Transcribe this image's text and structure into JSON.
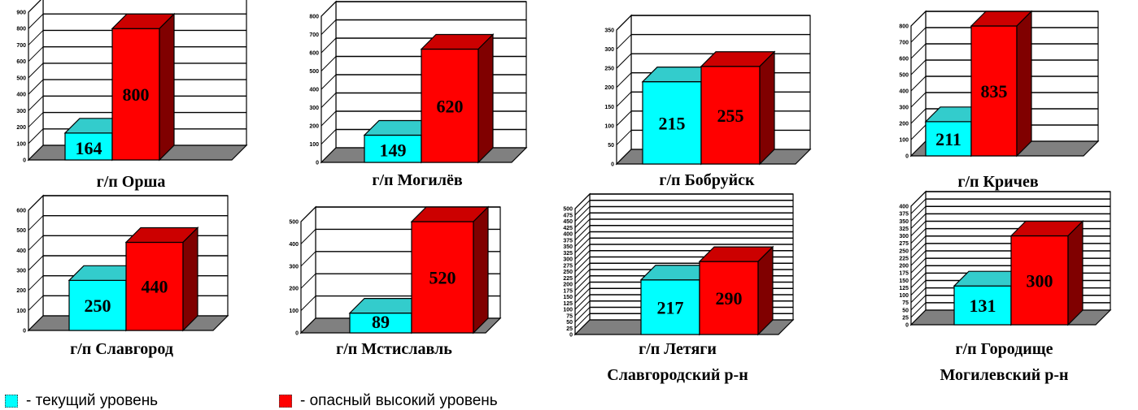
{
  "colors": {
    "current": "#00ffff",
    "current_side": "#00c8c8",
    "current_top": "#33cccc",
    "danger": "#ff0000",
    "danger_side": "#800000",
    "danger_top": "#cc0000",
    "floor": "#808080"
  },
  "legend": {
    "current_label": "- текущий уровень",
    "danger_label": "- опасный высокий уровень"
  },
  "chart_data": [
    {
      "type": "bar",
      "title": "г/п Орша",
      "title_lines": [
        "г/п Орша"
      ],
      "categories": [
        "текущий уровень",
        "опасный высокий уровень"
      ],
      "values": [
        164,
        800
      ],
      "ylim": [
        0,
        900
      ],
      "yticks": [
        0,
        100,
        200,
        300,
        400,
        500,
        600,
        700,
        800,
        900
      ]
    },
    {
      "type": "bar",
      "title": "г/п Могилёв",
      "title_lines": [
        "г/п Могилёв"
      ],
      "categories": [
        "текущий уровень",
        "опасный высокий уровень"
      ],
      "values": [
        149,
        620
      ],
      "ylim": [
        0,
        800
      ],
      "yticks": [
        0,
        100,
        200,
        300,
        400,
        500,
        600,
        700,
        800
      ]
    },
    {
      "type": "bar",
      "title": "г/п Бобруйск",
      "title_lines": [
        "г/п Бобруйск"
      ],
      "categories": [
        "текущий уровень",
        "опасный высокий уровень"
      ],
      "values": [
        215,
        255
      ],
      "ylim": [
        0,
        350
      ],
      "yticks": [
        0,
        50,
        100,
        150,
        200,
        250,
        300,
        350
      ]
    },
    {
      "type": "bar",
      "title": "г/п Кричев",
      "title_lines": [
        "г/п Кричев"
      ],
      "categories": [
        "текущий уровень",
        "опасный высокий уровень"
      ],
      "values": [
        211,
        835
      ],
      "ylim": [
        0,
        800
      ],
      "yticks": [
        0,
        100,
        200,
        300,
        400,
        500,
        600,
        700,
        800
      ]
    },
    {
      "type": "bar",
      "title": "г/п Славгород",
      "title_lines": [
        "г/п Славгород"
      ],
      "categories": [
        "текущий уровень",
        "опасный высокий уровень"
      ],
      "values": [
        250,
        440
      ],
      "ylim": [
        0,
        600
      ],
      "yticks": [
        0,
        100,
        200,
        300,
        400,
        500,
        600
      ]
    },
    {
      "type": "bar",
      "title": "г/п Мстиславль",
      "title_lines": [
        "г/п Мстиславль"
      ],
      "categories": [
        "текущий уровень",
        "опасный высокий уровень"
      ],
      "values": [
        89,
        520
      ],
      "ylim": [
        0,
        500
      ],
      "yticks": [
        0,
        100,
        200,
        300,
        400,
        500
      ]
    },
    {
      "type": "bar",
      "title": "г/п Летяги Славгородский р-н",
      "title_lines": [
        "г/п Летяги",
        "Славгородский р-н"
      ],
      "categories": [
        "текущий уровень",
        "опасный высокий уровень"
      ],
      "values": [
        217,
        290
      ],
      "ylim": [
        0,
        500
      ],
      "yticks": [
        0,
        25,
        50,
        75,
        100,
        125,
        150,
        175,
        200,
        225,
        250,
        275,
        300,
        325,
        350,
        375,
        400,
        425,
        450,
        475,
        500
      ]
    },
    {
      "type": "bar",
      "title": "г/п Городище Могилевский р-н",
      "title_lines": [
        "г/п Городище",
        "Могилевский р-н"
      ],
      "categories": [
        "текущий уровень",
        "опасный высокий уровень"
      ],
      "values": [
        131,
        300
      ],
      "ylim": [
        0,
        400
      ],
      "yticks": [
        0,
        25,
        50,
        75,
        100,
        125,
        150,
        175,
        200,
        225,
        250,
        275,
        300,
        325,
        350,
        375,
        400
      ]
    }
  ]
}
